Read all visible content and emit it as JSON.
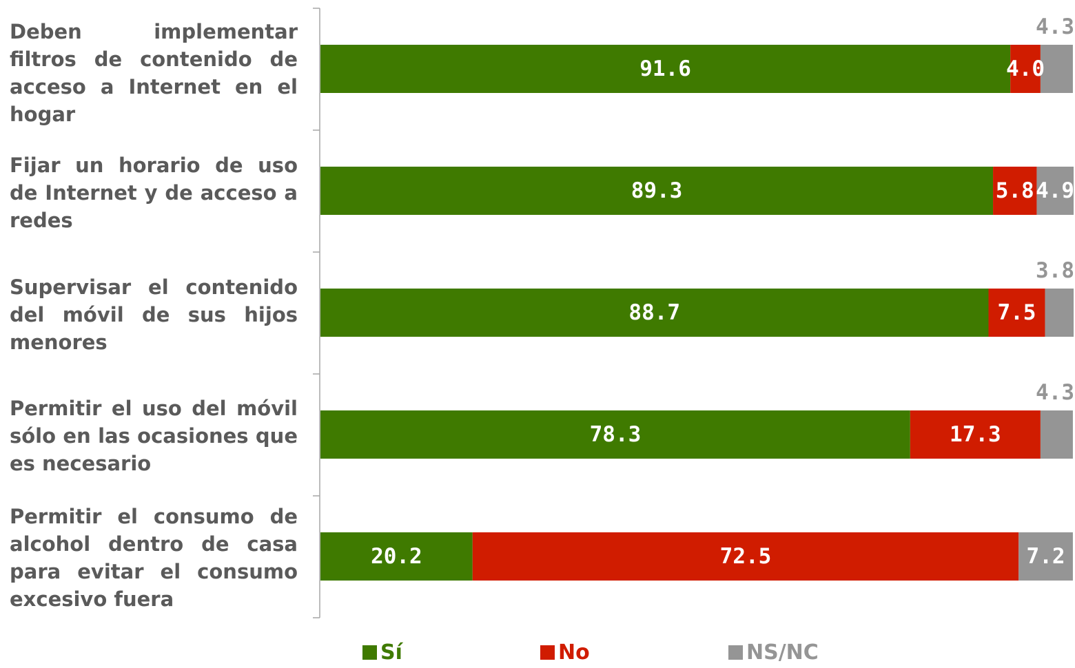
{
  "chart_data": {
    "type": "bar",
    "orientation": "horizontal",
    "stacked": true,
    "categories": [
      "Deben implementar filtros de contenido de acceso a Internet en el hogar",
      "Fijar un horario de uso de Internet y de acceso a redes",
      "Supervisar el contenido del móvil de sus hijos menores",
      "Permitir el uso del móvil sólo en las ocasiones que es necesario",
      "Permitir el consumo de alcohol dentro de casa para evitar el consumo excesivo fuera"
    ],
    "series": [
      {
        "name": "Sí",
        "color": "#3f7a00",
        "values": [
          91.6,
          89.3,
          88.7,
          78.3,
          20.2
        ],
        "labels": [
          "91.6",
          "89.3",
          "88.7",
          "78.3",
          "20.2"
        ]
      },
      {
        "name": "No",
        "color": "#d01c00",
        "values": [
          4.0,
          5.8,
          7.5,
          17.3,
          72.5
        ],
        "labels": [
          "4.0",
          "5.8",
          "7.5",
          "17.3",
          "72.5"
        ]
      },
      {
        "name": "NS/NC",
        "color": "#959595",
        "values": [
          4.3,
          4.9,
          3.8,
          4.3,
          7.2
        ],
        "labels": [
          "4.3",
          "4.9",
          "3.8",
          "4.3",
          "7.2"
        ]
      }
    ],
    "xlim": [
      0,
      100
    ],
    "grid": false,
    "legend_position": "bottom"
  }
}
